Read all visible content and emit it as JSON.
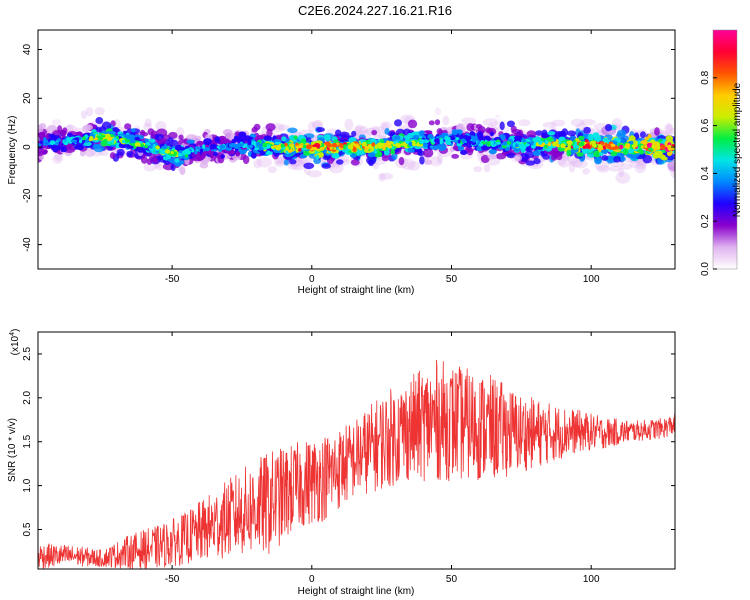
{
  "title": "C2E6.2024.227.16.21.R16",
  "chart_data": [
    {
      "type": "heatmap",
      "name": "spectrogram",
      "xlabel": "Height of straight line (km)",
      "ylabel": "Frequency (Hz)",
      "xlim": [
        -98,
        130
      ],
      "ylim": [
        -50,
        48
      ],
      "xticks": [
        -50,
        0,
        50,
        100
      ],
      "yticks": [
        40,
        20,
        0,
        -20,
        -40
      ],
      "colorbar": {
        "label": "Normalized spectral amplitude",
        "range": [
          0.0,
          1.0
        ],
        "ticks": [
          "0.0",
          "0.2",
          "0.4",
          "0.6",
          "0.8"
        ],
        "tick_values": [
          0.0,
          0.2,
          0.4,
          0.6,
          0.8
        ],
        "colors": [
          "#ffffff",
          "#e0b3f0",
          "#8800cc",
          "#2200ff",
          "#0088ff",
          "#00e5e5",
          "#00ee44",
          "#ccee00",
          "#ffcc00",
          "#ff5500",
          "#ff0033",
          "#ff0099"
        ]
      },
      "ridge": {
        "x": [
          -98,
          -90,
          -82,
          -75,
          -68,
          -62,
          -55,
          -48,
          -40,
          -30,
          -20,
          -10,
          0,
          10,
          20,
          30,
          40,
          50,
          60,
          70,
          80,
          90,
          100,
          110,
          120,
          130
        ],
        "f": [
          2,
          2,
          3,
          4,
          3,
          1,
          -1,
          -3,
          -1,
          0,
          1,
          0,
          0,
          0,
          0,
          1,
          2,
          3,
          2,
          1,
          1,
          1,
          1,
          0,
          0,
          0
        ],
        "amp": [
          0.4,
          0.45,
          0.5,
          0.75,
          0.6,
          0.55,
          0.6,
          0.6,
          0.4,
          0.4,
          0.5,
          0.7,
          0.85,
          0.8,
          0.75,
          0.7,
          0.55,
          0.5,
          0.5,
          0.55,
          0.65,
          0.75,
          0.85,
          0.85,
          0.9,
          0.9
        ]
      }
    },
    {
      "type": "line",
      "name": "snr",
      "xlabel": "Height of straight line (km)",
      "ylabel": "SNR (10 * v/v)",
      "scale_note": "(x10",
      "scale_exp": "4",
      "scale_close": ")",
      "xlim": [
        -98,
        130
      ],
      "ylim": [
        0.05,
        2.75
      ],
      "xticks": [
        -50,
        0,
        50,
        100
      ],
      "yticks": [
        0.5,
        1.0,
        1.5,
        2.0,
        2.5
      ],
      "yticklabels": [
        "0.5",
        "1.0",
        "1.5",
        "2.0",
        "2.5"
      ],
      "color": "#ee3333",
      "envelope": {
        "x": [
          -98,
          -85,
          -75,
          -65,
          -55,
          -45,
          -35,
          -25,
          -15,
          -5,
          5,
          15,
          25,
          35,
          45,
          55,
          65,
          75,
          85,
          95,
          105,
          115,
          125,
          130
        ],
        "mid": [
          0.2,
          0.2,
          0.17,
          0.25,
          0.3,
          0.4,
          0.55,
          0.7,
          0.8,
          1.0,
          1.1,
          1.3,
          1.5,
          1.65,
          1.75,
          1.7,
          1.65,
          1.6,
          1.6,
          1.62,
          1.6,
          1.62,
          1.65,
          1.7
        ],
        "noise": [
          0.15,
          0.12,
          0.1,
          0.2,
          0.25,
          0.3,
          0.4,
          0.5,
          0.6,
          0.5,
          0.5,
          0.45,
          0.55,
          0.6,
          0.7,
          0.65,
          0.6,
          0.45,
          0.35,
          0.25,
          0.18,
          0.12,
          0.12,
          0.12
        ]
      }
    }
  ]
}
